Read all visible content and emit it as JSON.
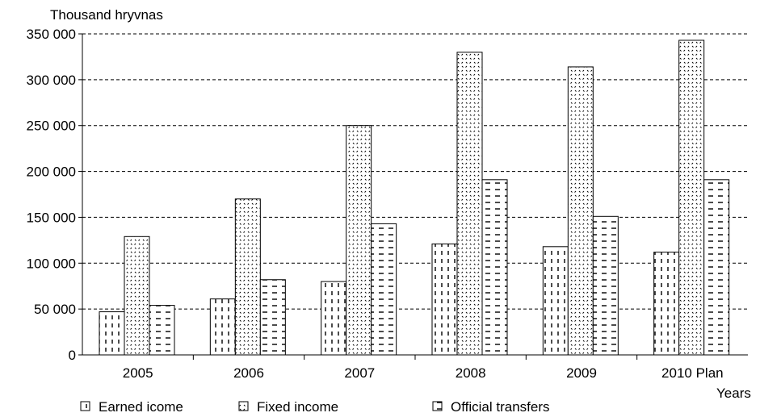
{
  "chart_data": {
    "type": "bar",
    "ylabel": "Thousand hryvnas",
    "xlabel": "Years",
    "categories": [
      "2005",
      "2006",
      "2007",
      "2008",
      "2009",
      "2010 Plan"
    ],
    "series": [
      {
        "name": "Earned icome",
        "values": [
          47000,
          61000,
          80000,
          121000,
          118000,
          112000
        ],
        "pattern": "dashed-vertical"
      },
      {
        "name": "Fixed income",
        "values": [
          129000,
          170000,
          250000,
          330000,
          314000,
          343000
        ],
        "pattern": "dotted-diagonal"
      },
      {
        "name": "Official transfers",
        "values": [
          54000,
          82000,
          143000,
          191000,
          151000,
          191000
        ],
        "pattern": "dashed-horizontal"
      }
    ],
    "yticks": [
      "0",
      "50 000",
      "100 000",
      "150 000",
      "200 000",
      "250 000",
      "300 000",
      "350 000"
    ],
    "ylim": [
      0,
      350000
    ],
    "grid": true,
    "legend_position": "bottom"
  }
}
